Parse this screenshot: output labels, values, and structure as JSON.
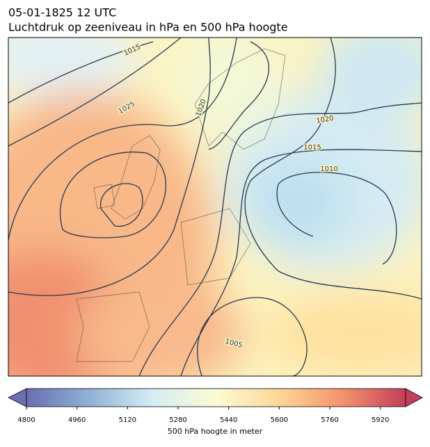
{
  "title": [
    "05-01-1825 12 UTC",
    "Luchtdruk op zeeniveau in hPa en 500 hPa hoogte"
  ],
  "contour_labels": [
    1015,
    1025,
    1020,
    1020,
    1015,
    1010,
    1005
  ],
  "colorbar": {
    "label": "500 hPa hoogte in meter",
    "lim": [
      4800,
      6000
    ],
    "ticks": [
      4800,
      4960,
      5120,
      5280,
      5440,
      5600,
      5760,
      5920
    ],
    "colors": [
      "#6a6fb0",
      "#8fb3d5",
      "#d6edf5",
      "#fbfbd2",
      "#fdd696",
      "#f3936c",
      "#c33e5b"
    ]
  }
}
